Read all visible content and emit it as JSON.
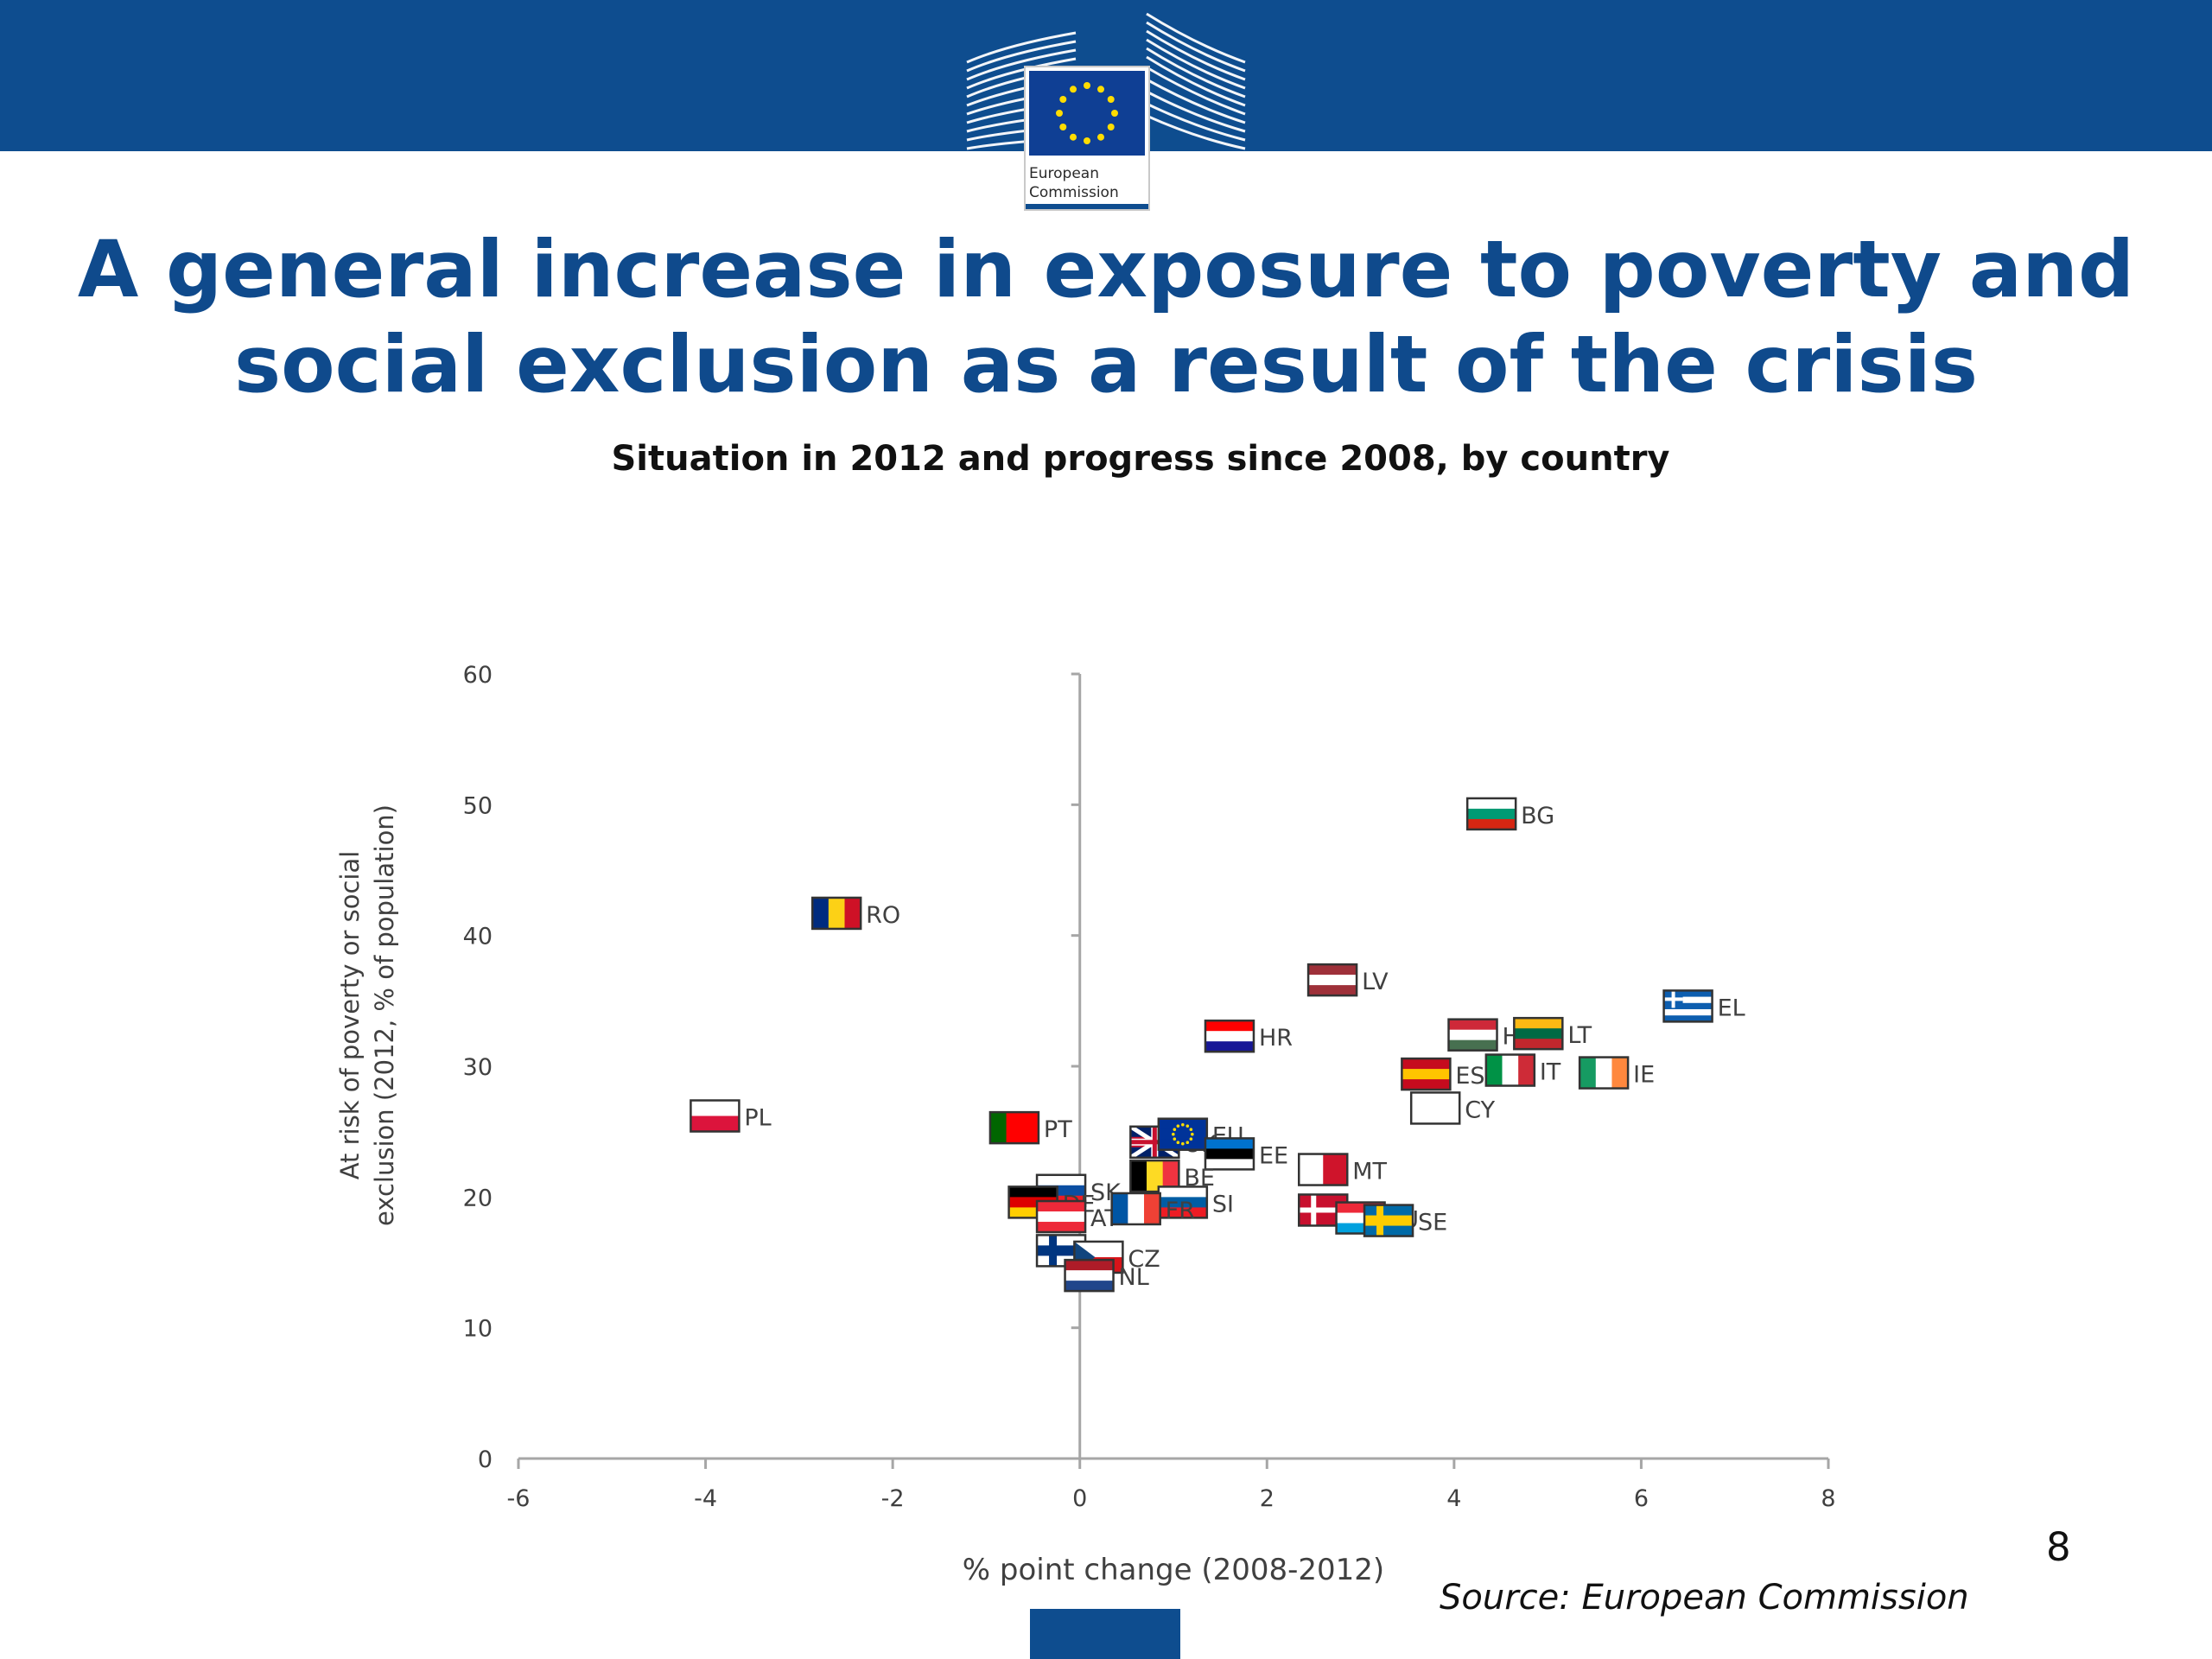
{
  "header": {
    "logo_text_line1": "European",
    "logo_text_line2": "Commission",
    "bar_color": "#0e4d8f"
  },
  "slide": {
    "title_line1": "A general increase in exposure to poverty and",
    "title_line2": "social exclusion as a result of the crisis",
    "page_number": "8",
    "source": "Source: European Commission"
  },
  "chart_data": {
    "type": "scatter",
    "title": "Situation in 2012 and progress since 2008, by country",
    "xlabel": "% point change (2008-2012)",
    "ylabel_line1": "At risk of poverty or social",
    "ylabel_line2": "exclusion (2012, % of population)",
    "xlim": [
      -6,
      8
    ],
    "ylim": [
      0,
      60
    ],
    "xticks": [
      -6,
      -4,
      -2,
      0,
      2,
      4,
      6,
      8
    ],
    "yticks": [
      0,
      10,
      20,
      30,
      40,
      50,
      60
    ],
    "grid": false,
    "points": [
      {
        "label": "BG",
        "x": 4.4,
        "y": 49.3,
        "flag": "h:#ffffff,#009b74,#d62612"
      },
      {
        "label": "RO",
        "x": -2.6,
        "y": 41.7,
        "flag": "v:#002b7f,#fcd116,#ce1126"
      },
      {
        "label": "LV",
        "x": 2.7,
        "y": 36.6,
        "flag": "h:#9e3039,#ffffff,#9e3039"
      },
      {
        "label": "EL",
        "x": 6.5,
        "y": 34.6,
        "flag": "h:#0d5eaf,#ffffff,#0d5eaf,#ffffff,#0d5eaf"
      },
      {
        "label": "HU",
        "x": 4.2,
        "y": 32.4,
        "flag": "h:#ce2939,#ffffff,#477050"
      },
      {
        "label": "LT",
        "x": 4.9,
        "y": 32.5,
        "flag": "h:#fdb913,#006a44,#c1272d"
      },
      {
        "label": "HR",
        "x": 1.6,
        "y": 32.3,
        "flag": "h:#ff0000,#ffffff,#171796"
      },
      {
        "label": "ES",
        "x": 3.7,
        "y": 29.4,
        "flag": "h:#c60b1e,#ffc400,#c60b1e"
      },
      {
        "label": "IT",
        "x": 4.6,
        "y": 29.7,
        "flag": "v:#009246,#ffffff,#ce2b37"
      },
      {
        "label": "IE",
        "x": 5.6,
        "y": 29.5,
        "flag": "v:#169b62,#ffffff,#ff883e"
      },
      {
        "label": "CY",
        "x": 3.8,
        "y": 26.8,
        "flag": "h:#ffffff,#ffffff,#ffffff"
      },
      {
        "label": "PL",
        "x": -3.9,
        "y": 26.2,
        "flag": "h:#ffffff,#dc143c"
      },
      {
        "label": "PT",
        "x": -0.7,
        "y": 25.3,
        "flag": "v:#006600,#ff0000,#ff0000"
      },
      {
        "label": "UK",
        "x": 0.8,
        "y": 24.2,
        "flag": "h:#012169,#c8102e,#012169"
      },
      {
        "label": "EU",
        "x": 1.1,
        "y": 24.8,
        "flag": "h:#003399,#003399,#003399"
      },
      {
        "label": "EE",
        "x": 1.6,
        "y": 23.3,
        "flag": "h:#0072ce,#000000,#ffffff"
      },
      {
        "label": "MT",
        "x": 2.6,
        "y": 22.1,
        "flag": "v:#ffffff,#cf142b"
      },
      {
        "label": "BE",
        "x": 0.8,
        "y": 21.6,
        "flag": "v:#000000,#fdda24,#ef3340"
      },
      {
        "label": "SK",
        "x": -0.2,
        "y": 20.5,
        "flag": "h:#ffffff,#0b4ea2,#ee1c25"
      },
      {
        "label": "DE",
        "x": -0.5,
        "y": 19.6,
        "flag": "h:#000000,#dd0000,#ffce00"
      },
      {
        "label": "AT",
        "x": -0.2,
        "y": 18.5,
        "flag": "h:#ed2939,#ffffff,#ed2939"
      },
      {
        "label": "SI",
        "x": 1.1,
        "y": 19.6,
        "flag": "h:#ffffff,#005da4,#ed1c24"
      },
      {
        "label": "FR",
        "x": 0.6,
        "y": 19.1,
        "flag": "v:#0055a4,#ffffff,#ef4135"
      },
      {
        "label": "DK",
        "x": 2.6,
        "y": 19.0,
        "flag": "h:#c8102e,#c8102e,#c8102e"
      },
      {
        "label": "LU",
        "x": 3.0,
        "y": 18.4,
        "flag": "h:#ed2939,#ffffff,#00a1de"
      },
      {
        "label": "SE",
        "x": 3.3,
        "y": 18.2,
        "flag": "h:#006aa7,#fecc00,#006aa7"
      },
      {
        "label": "FI",
        "x": -0.2,
        "y": 15.9,
        "flag": "h:#ffffff,#003580,#ffffff"
      },
      {
        "label": "CZ",
        "x": 0.2,
        "y": 15.4,
        "flag": "h:#ffffff,#d7141a"
      },
      {
        "label": "NL",
        "x": 0.1,
        "y": 14.0,
        "flag": "h:#ae1c28,#ffffff,#21468b"
      }
    ]
  }
}
